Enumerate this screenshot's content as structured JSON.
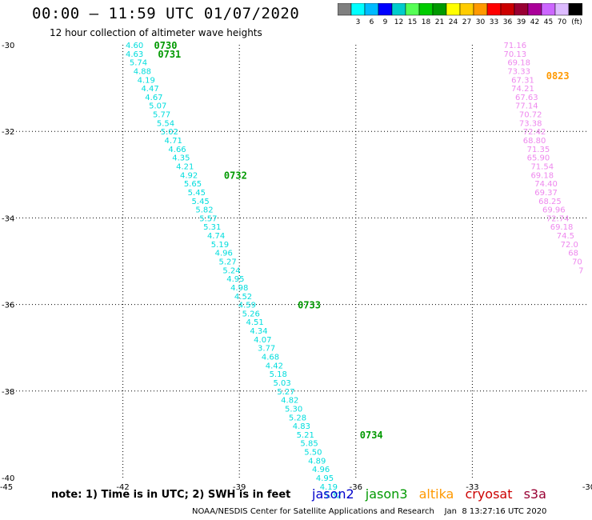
{
  "title": "00:00 – 11:59 UTC 01/07/2020",
  "subtitle": "12 hour collection of altimeter wave heights",
  "colorbar": {
    "colors": [
      "#7f7f7f",
      "#00ffff",
      "#00bbff",
      "#0000ff",
      "#00cccc",
      "#55ff55",
      "#00cc00",
      "#009900",
      "#ffff00",
      "#ffcc00",
      "#ff9900",
      "#ff0000",
      "#cc0000",
      "#990033",
      "#aa0099",
      "#cc66ff",
      "#ddbbff",
      "#000000"
    ],
    "labels": [
      "3",
      "6",
      "9",
      "12",
      "15",
      "18",
      "21",
      "24",
      "27",
      "30",
      "33",
      "36",
      "39",
      "42",
      "45",
      "70"
    ],
    "unit": "(ft)"
  },
  "note": "note:  1) Time is in UTC;  2) SWH is in feet",
  "legend": [
    {
      "name": "jason2",
      "color": "#0000cc"
    },
    {
      "name": "jason3",
      "color": "#009900"
    },
    {
      "name": "altika",
      "color": "#ff9900"
    },
    {
      "name": "cryosat",
      "color": "#cc0000"
    },
    {
      "name": "s3a",
      "color": "#990033"
    }
  ],
  "credit": "NOAA/NESDIS Center for Satellite Applications and Research    Jan  8 13:27:16 UTC 2020",
  "chart_data": {
    "type": "scatter",
    "xlim": [
      -45,
      -30
    ],
    "ylim": [
      -40,
      -30
    ],
    "xticks": [
      "-45",
      "-42",
      "-39",
      "-36",
      "-33",
      "-30"
    ],
    "yticks": [
      "-30",
      "-32",
      "-34",
      "-36",
      "-38",
      "-40"
    ],
    "grid": true,
    "tracks": [
      {
        "satellite": "jason3",
        "label_color": "#009900",
        "value_color": "#00dddd",
        "points": [
          {
            "x": -41.7,
            "y": -30.0,
            "v": "4.60"
          },
          {
            "x": -41.7,
            "y": -30.2,
            "v": "4.63"
          },
          {
            "x": -41.6,
            "y": -30.4,
            "v": "5.74"
          },
          {
            "x": -41.5,
            "y": -30.6,
            "v": "4.88"
          },
          {
            "x": -41.4,
            "y": -30.8,
            "v": "4.19"
          },
          {
            "x": -41.3,
            "y": -31.0,
            "v": "4.47"
          },
          {
            "x": -41.2,
            "y": -31.2,
            "v": "4.67"
          },
          {
            "x": -41.1,
            "y": -31.4,
            "v": "5.07"
          },
          {
            "x": -41.0,
            "y": -31.6,
            "v": "5.77"
          },
          {
            "x": -40.9,
            "y": -31.8,
            "v": "5.54"
          },
          {
            "x": -40.8,
            "y": -32.0,
            "v": "5.02"
          },
          {
            "x": -40.7,
            "y": -32.2,
            "v": "4.71"
          },
          {
            "x": -40.6,
            "y": -32.4,
            "v": "4.66"
          },
          {
            "x": -40.5,
            "y": -32.6,
            "v": "4.35"
          },
          {
            "x": -40.4,
            "y": -32.8,
            "v": "4.21"
          },
          {
            "x": -40.3,
            "y": -33.0,
            "v": "4.92"
          },
          {
            "x": -40.2,
            "y": -33.2,
            "v": "5.65"
          },
          {
            "x": -40.1,
            "y": -33.4,
            "v": "5.45"
          },
          {
            "x": -40.0,
            "y": -33.6,
            "v": "5.45"
          },
          {
            "x": -39.9,
            "y": -33.8,
            "v": "5.82"
          },
          {
            "x": -39.8,
            "y": -34.0,
            "v": "5.57"
          },
          {
            "x": -39.7,
            "y": -34.2,
            "v": "5.31"
          },
          {
            "x": -39.6,
            "y": -34.4,
            "v": "4.74"
          },
          {
            "x": -39.5,
            "y": -34.6,
            "v": "5.19"
          },
          {
            "x": -39.4,
            "y": -34.8,
            "v": "4.96"
          },
          {
            "x": -39.3,
            "y": -35.0,
            "v": "5.27"
          },
          {
            "x": -39.2,
            "y": -35.2,
            "v": "5.24"
          },
          {
            "x": -39.1,
            "y": -35.4,
            "v": "4.95"
          },
          {
            "x": -39.0,
            "y": -35.6,
            "v": "4.98"
          },
          {
            "x": -38.9,
            "y": -35.8,
            "v": "4.52"
          },
          {
            "x": -38.8,
            "y": -36.0,
            "v": "4.59"
          },
          {
            "x": -38.7,
            "y": -36.2,
            "v": "5.26"
          },
          {
            "x": -38.6,
            "y": -36.4,
            "v": "4.51"
          },
          {
            "x": -38.5,
            "y": -36.6,
            "v": "4.34"
          },
          {
            "x": -38.4,
            "y": -36.8,
            "v": "4.07"
          },
          {
            "x": -38.3,
            "y": -37.0,
            "v": "3.77"
          },
          {
            "x": -38.2,
            "y": -37.2,
            "v": "4.68"
          },
          {
            "x": -38.1,
            "y": -37.4,
            "v": "4.42"
          },
          {
            "x": -38.0,
            "y": -37.6,
            "v": "5.18"
          },
          {
            "x": -37.9,
            "y": -37.8,
            "v": "5.03"
          },
          {
            "x": -37.8,
            "y": -38.0,
            "v": "5.27"
          },
          {
            "x": -37.7,
            "y": -38.2,
            "v": "4.82"
          },
          {
            "x": -37.6,
            "y": -38.4,
            "v": "5.30"
          },
          {
            "x": -37.5,
            "y": -38.6,
            "v": "5.28"
          },
          {
            "x": -37.4,
            "y": -38.8,
            "v": "4.83"
          },
          {
            "x": -37.3,
            "y": -39.0,
            "v": "5.21"
          },
          {
            "x": -37.2,
            "y": -39.2,
            "v": "5.85"
          },
          {
            "x": -37.1,
            "y": -39.4,
            "v": "5.50"
          },
          {
            "x": -37.0,
            "y": -39.6,
            "v": "4.89"
          },
          {
            "x": -36.9,
            "y": -39.8,
            "v": "4.96"
          },
          {
            "x": -36.8,
            "y": -40.0,
            "v": "4.95"
          },
          {
            "x": -36.7,
            "y": -40.2,
            "v": "4.19"
          },
          {
            "x": -36.6,
            "y": -40.4,
            "v": "5.32"
          }
        ],
        "times": [
          {
            "x": -40.9,
            "y": -30.0,
            "t": "0730"
          },
          {
            "x": -40.8,
            "y": -30.2,
            "t": "0731"
          },
          {
            "x": -39.1,
            "y": -33.0,
            "t": "0732"
          },
          {
            "x": -37.2,
            "y": -36.0,
            "t": "0733"
          },
          {
            "x": -35.6,
            "y": -39.0,
            "t": "0734"
          }
        ]
      },
      {
        "satellite": "altika",
        "label_color": "#ff9900",
        "value_color": "#ee88ee",
        "points": [
          {
            "x": -31.9,
            "y": -30.0,
            "v": "71.16"
          },
          {
            "x": -31.9,
            "y": -30.2,
            "v": "70.13"
          },
          {
            "x": -31.8,
            "y": -30.4,
            "v": "69.18"
          },
          {
            "x": -31.8,
            "y": -30.6,
            "v": "73.33"
          },
          {
            "x": -31.7,
            "y": -30.8,
            "v": "67.31"
          },
          {
            "x": -31.7,
            "y": -31.0,
            "v": "74.21"
          },
          {
            "x": -31.6,
            "y": -31.2,
            "v": "67.63"
          },
          {
            "x": -31.6,
            "y": -31.4,
            "v": "77.14"
          },
          {
            "x": -31.5,
            "y": -31.6,
            "v": "70.72"
          },
          {
            "x": -31.5,
            "y": -31.8,
            "v": "73.38"
          },
          {
            "x": -31.4,
            "y": -32.0,
            "v": "72.42"
          },
          {
            "x": -31.4,
            "y": -32.2,
            "v": "68.80"
          },
          {
            "x": -31.3,
            "y": -32.4,
            "v": "71.35"
          },
          {
            "x": -31.3,
            "y": -32.6,
            "v": "65.90"
          },
          {
            "x": -31.2,
            "y": -32.8,
            "v": "71.54"
          },
          {
            "x": -31.2,
            "y": -33.0,
            "v": "69.18"
          },
          {
            "x": -31.1,
            "y": -33.2,
            "v": "74.40"
          },
          {
            "x": -31.1,
            "y": -33.4,
            "v": "69.37"
          },
          {
            "x": -31.0,
            "y": -33.6,
            "v": "68.25"
          },
          {
            "x": -30.9,
            "y": -33.8,
            "v": "69.96"
          },
          {
            "x": -30.8,
            "y": -34.0,
            "v": "72.74"
          },
          {
            "x": -30.7,
            "y": -34.2,
            "v": "69.18"
          },
          {
            "x": -30.6,
            "y": -34.4,
            "v": "74.5"
          },
          {
            "x": -30.5,
            "y": -34.6,
            "v": "72.0"
          },
          {
            "x": -30.4,
            "y": -34.8,
            "v": "68"
          },
          {
            "x": -30.3,
            "y": -35.0,
            "v": "70"
          },
          {
            "x": -30.2,
            "y": -35.2,
            "v": "7"
          }
        ],
        "times": [
          {
            "x": -30.8,
            "y": -30.7,
            "t": "0823"
          }
        ]
      }
    ]
  }
}
